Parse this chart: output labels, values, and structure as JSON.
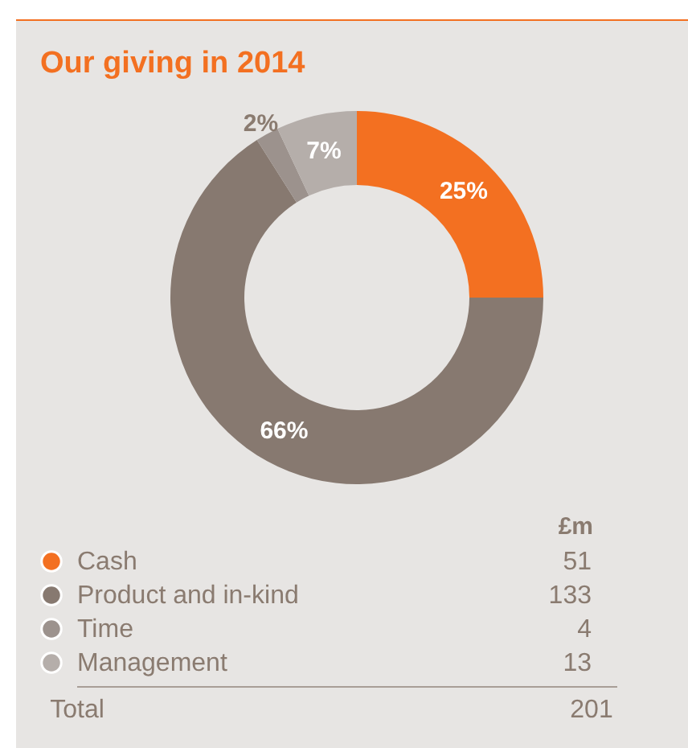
{
  "chart_data": {
    "type": "donut",
    "title": "Our giving in 2014",
    "categories": [
      "Cash",
      "Product and in-kind",
      "Time",
      "Management"
    ],
    "values": [
      25,
      66,
      2,
      7
    ],
    "colors": [
      "#f37021",
      "#877970",
      "#9c928d",
      "#b5aeaa"
    ],
    "value_labels": [
      "25%",
      "66%",
      "2%",
      "7%"
    ],
    "legend_title": "£m",
    "legend": "bottom",
    "annotations": [
      "51",
      "133",
      "4",
      "13",
      "Total",
      "201"
    ]
  }
}
